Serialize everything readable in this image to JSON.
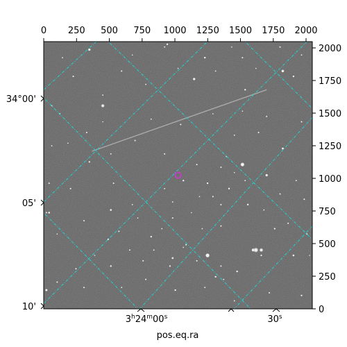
{
  "image": {
    "description_hidden": "",
    "background": "#5a5a5a",
    "grid_color": "#22d3d3",
    "marker_color": "#d633d6"
  },
  "axes": {
    "xlabel": "pos.eq.ra",
    "top_ticks": [
      "0",
      "250",
      "500",
      "750",
      "1000",
      "1250",
      "1500",
      "1750",
      "2000"
    ],
    "right_ticks": [
      "0",
      "250",
      "500",
      "750",
      "1000",
      "1250",
      "1500",
      "1750",
      "2000"
    ],
    "left_ticks": [
      "34°00'",
      "05'",
      "10'"
    ],
    "bottom_ticks": [
      "3h24m00s",
      "30s"
    ]
  },
  "stars": [
    [
      0.17,
      0.03,
      1.6
    ],
    [
      0.46,
      0.01,
      1.2
    ],
    [
      0.03,
      0.24,
      1.0
    ],
    [
      0.11,
      0.13,
      1.1
    ],
    [
      0.22,
      0.2,
      0.9
    ],
    [
      0.29,
      0.11,
      1.0
    ],
    [
      0.33,
      0.05,
      0.8
    ],
    [
      0.45,
      0.02,
      0.9
    ],
    [
      0.56,
      0.14,
      1.5
    ],
    [
      0.6,
      0.06,
      1.2
    ],
    [
      0.64,
      0.11,
      0.9
    ],
    [
      0.74,
      0.06,
      1.0
    ],
    [
      0.75,
      0.18,
      1.2
    ],
    [
      0.74,
      0.26,
      0.8
    ],
    [
      0.89,
      0.11,
      1.8
    ],
    [
      0.93,
      0.13,
      1.2
    ],
    [
      0.96,
      0.05,
      0.9
    ],
    [
      0.96,
      0.3,
      1.0
    ],
    [
      0.89,
      0.4,
      1.4
    ],
    [
      0.83,
      0.5,
      1.6
    ],
    [
      0.74,
      0.46,
      2.4
    ],
    [
      0.66,
      0.47,
      1.0
    ],
    [
      0.68,
      0.43,
      0.9
    ],
    [
      0.71,
      0.49,
      0.8
    ],
    [
      0.61,
      0.53,
      1.2
    ],
    [
      0.57,
      0.46,
      1.0
    ],
    [
      0.63,
      0.58,
      1.0
    ],
    [
      0.69,
      0.55,
      1.2
    ],
    [
      0.66,
      0.61,
      1.0
    ],
    [
      0.52,
      0.52,
      1.2
    ],
    [
      0.48,
      0.6,
      0.9
    ],
    [
      0.45,
      0.42,
      1.0
    ],
    [
      0.34,
      0.37,
      1.0
    ],
    [
      0.25,
      0.42,
      0.9
    ],
    [
      0.17,
      0.45,
      1.1
    ],
    [
      0.09,
      0.38,
      0.8
    ],
    [
      0.03,
      0.39,
      0.9
    ],
    [
      0.02,
      0.53,
      1.0
    ],
    [
      0.1,
      0.55,
      1.0
    ],
    [
      0.26,
      0.53,
      1.0
    ],
    [
      0.33,
      0.61,
      0.9
    ],
    [
      0.15,
      0.67,
      1.0
    ],
    [
      0.05,
      0.72,
      0.8
    ],
    [
      0.24,
      0.74,
      1.1
    ],
    [
      0.4,
      0.73,
      1.2
    ],
    [
      0.48,
      0.66,
      1.0
    ],
    [
      0.44,
      0.7,
      0.9
    ],
    [
      0.53,
      0.76,
      1.0
    ],
    [
      0.59,
      0.7,
      0.9
    ],
    [
      0.66,
      0.69,
      1.0
    ],
    [
      0.76,
      0.61,
      1.2
    ],
    [
      0.82,
      0.63,
      0.9
    ],
    [
      0.88,
      0.57,
      1.0
    ],
    [
      0.94,
      0.52,
      0.9
    ],
    [
      0.97,
      0.59,
      1.0
    ],
    [
      0.78,
      0.78,
      2.0
    ],
    [
      0.81,
      0.8,
      1.1
    ],
    [
      0.93,
      0.8,
      1.3
    ],
    [
      0.72,
      0.86,
      1.2
    ],
    [
      0.66,
      0.84,
      1.0
    ],
    [
      0.67,
      0.89,
      0.9
    ],
    [
      0.57,
      0.82,
      1.0
    ],
    [
      0.47,
      0.84,
      1.1
    ],
    [
      0.41,
      0.78,
      0.9
    ],
    [
      0.32,
      0.78,
      1.0
    ],
    [
      0.25,
      0.84,
      1.2
    ],
    [
      0.19,
      0.8,
      0.8
    ],
    [
      0.12,
      0.85,
      1.0
    ],
    [
      0.05,
      0.9,
      1.0
    ],
    [
      0.01,
      0.93,
      1.5
    ],
    [
      0.15,
      0.92,
      1.0
    ],
    [
      0.29,
      0.92,
      0.9
    ],
    [
      0.38,
      0.89,
      1.0
    ],
    [
      0.49,
      0.93,
      1.2
    ],
    [
      0.6,
      0.92,
      0.9
    ],
    [
      0.71,
      0.97,
      0.9
    ],
    [
      0.84,
      0.94,
      1.0
    ],
    [
      0.96,
      0.95,
      1.1
    ],
    [
      0.99,
      0.8,
      0.8
    ],
    [
      0.52,
      0.77,
      0.8
    ],
    [
      0.61,
      0.8,
      2.6
    ],
    [
      0.64,
      0.88,
      1.2
    ],
    [
      0.37,
      0.82,
      1.0
    ],
    [
      0.55,
      0.64,
      0.8
    ],
    [
      0.71,
      0.35,
      0.9
    ],
    [
      0.8,
      0.34,
      1.0
    ],
    [
      0.83,
      0.28,
      1.0
    ],
    [
      0.63,
      0.27,
      0.8
    ],
    [
      0.51,
      0.31,
      1.0
    ],
    [
      0.4,
      0.29,
      0.9
    ],
    [
      0.22,
      0.3,
      0.8
    ],
    [
      0.16,
      0.34,
      1.0
    ],
    [
      0.06,
      0.27,
      0.9
    ],
    [
      0.25,
      0.63,
      1.3
    ],
    [
      0.45,
      0.55,
      0.9
    ],
    [
      0.58,
      0.58,
      0.8
    ],
    [
      0.75,
      0.52,
      0.9
    ],
    [
      0.91,
      0.68,
      1.0
    ],
    [
      0.86,
      0.7,
      1.1
    ],
    [
      0.98,
      0.72,
      0.9
    ],
    [
      0.88,
      0.02,
      1.0
    ],
    [
      0.7,
      0.02,
      0.8
    ],
    [
      0.79,
      0.1,
      0.8
    ],
    [
      0.5,
      0.1,
      0.8
    ],
    [
      0.38,
      0.16,
      0.9
    ],
    [
      0.07,
      0.06,
      0.9
    ],
    [
      0.02,
      0.64,
      1.3
    ],
    [
      0.01,
      0.64,
      1.0
    ],
    [
      0.35,
      0.66,
      0.8
    ],
    [
      0.28,
      0.71,
      1.0
    ]
  ],
  "bright_stars": [
    [
      0.22,
      0.24,
      2.8
    ],
    [
      0.74,
      0.46,
      3.2
    ],
    [
      0.79,
      0.78,
      3.8
    ],
    [
      0.81,
      0.78,
      3.0
    ],
    [
      0.56,
      0.14,
      2.2
    ],
    [
      0.89,
      0.11,
      2.0
    ],
    [
      0.17,
      0.03,
      2.0
    ],
    [
      0.48,
      0.81,
      1.8
    ]
  ],
  "streak": {
    "from": [
      0.18,
      0.41
    ],
    "to": [
      0.83,
      0.18
    ]
  },
  "marker": {
    "at": [
      0.5,
      0.5
    ]
  },
  "grid_lines": [
    [
      [
        0.0,
        0.18
      ],
      [
        0.25,
        -0.05
      ]
    ],
    [
      [
        0.0,
        0.6
      ],
      [
        0.63,
        -0.02
      ]
    ],
    [
      [
        0.0,
        0.98
      ],
      [
        1.0,
        -0.02
      ]
    ],
    [
      [
        0.34,
        1.02
      ],
      [
        1.03,
        0.25
      ]
    ],
    [
      [
        0.69,
        1.02
      ],
      [
        1.02,
        0.67
      ]
    ],
    [
      [
        0.23,
        -0.01
      ],
      [
        1.0,
        0.74
      ]
    ],
    [
      [
        -0.01,
        0.2
      ],
      [
        0.78,
        1.01
      ]
    ],
    [
      [
        -0.01,
        0.63
      ],
      [
        0.36,
        1.01
      ]
    ],
    [
      [
        0.74,
        -0.01
      ],
      [
        1.01,
        0.26
      ]
    ]
  ]
}
